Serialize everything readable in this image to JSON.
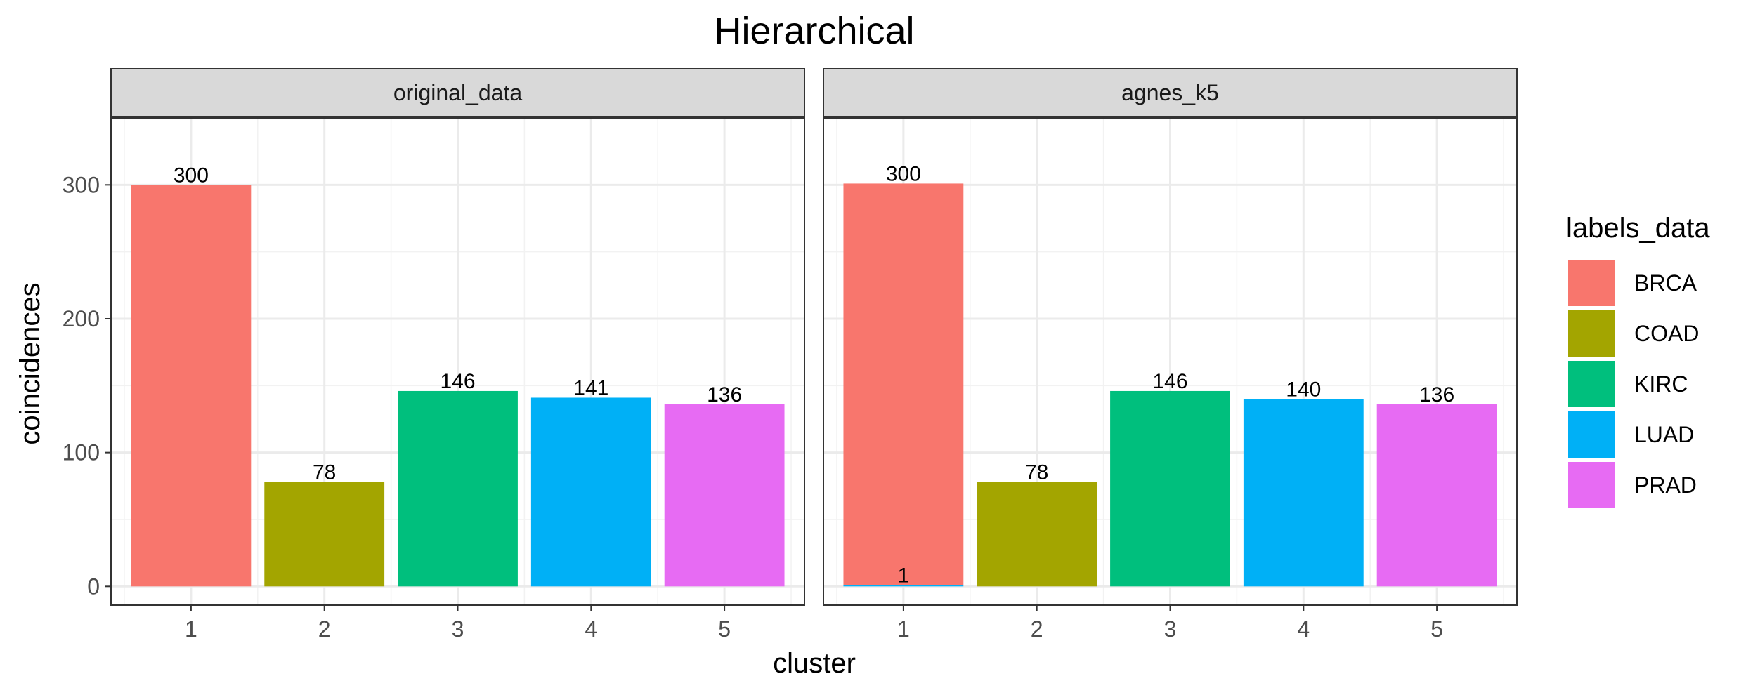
{
  "chart_data": {
    "type": "bar",
    "title": "Hierarchical",
    "xlabel": "cluster",
    "ylabel": "coincidences",
    "ylim": [
      -14,
      350
    ],
    "yticks": [
      0,
      100,
      200,
      300
    ],
    "categories": [
      "1",
      "2",
      "3",
      "4",
      "5"
    ],
    "grid": true,
    "legend": {
      "title": "labels_data",
      "position": "right",
      "entries": [
        {
          "name": "BRCA",
          "color": "#F8766D"
        },
        {
          "name": "COAD",
          "color": "#A3A500"
        },
        {
          "name": "KIRC",
          "color": "#00BF7D"
        },
        {
          "name": "LUAD",
          "color": "#00B0F6"
        },
        {
          "name": "PRAD",
          "color": "#E76BF3"
        }
      ]
    },
    "facets": [
      {
        "strip": "original_data",
        "bars": [
          {
            "cluster": "1",
            "segments": [
              {
                "label": "BRCA",
                "value": 300
              }
            ]
          },
          {
            "cluster": "2",
            "segments": [
              {
                "label": "COAD",
                "value": 78
              }
            ]
          },
          {
            "cluster": "3",
            "segments": [
              {
                "label": "KIRC",
                "value": 146
              }
            ]
          },
          {
            "cluster": "4",
            "segments": [
              {
                "label": "LUAD",
                "value": 141
              }
            ]
          },
          {
            "cluster": "5",
            "segments": [
              {
                "label": "PRAD",
                "value": 136
              }
            ]
          }
        ]
      },
      {
        "strip": "agnes_k5",
        "bars": [
          {
            "cluster": "1",
            "segments": [
              {
                "label": "LUAD",
                "value": 1
              },
              {
                "label": "BRCA",
                "value": 300
              }
            ]
          },
          {
            "cluster": "2",
            "segments": [
              {
                "label": "COAD",
                "value": 78
              }
            ]
          },
          {
            "cluster": "3",
            "segments": [
              {
                "label": "KIRC",
                "value": 146
              }
            ]
          },
          {
            "cluster": "4",
            "segments": [
              {
                "label": "LUAD",
                "value": 140
              }
            ]
          },
          {
            "cluster": "5",
            "segments": [
              {
                "label": "PRAD",
                "value": 136
              }
            ]
          }
        ]
      }
    ]
  }
}
